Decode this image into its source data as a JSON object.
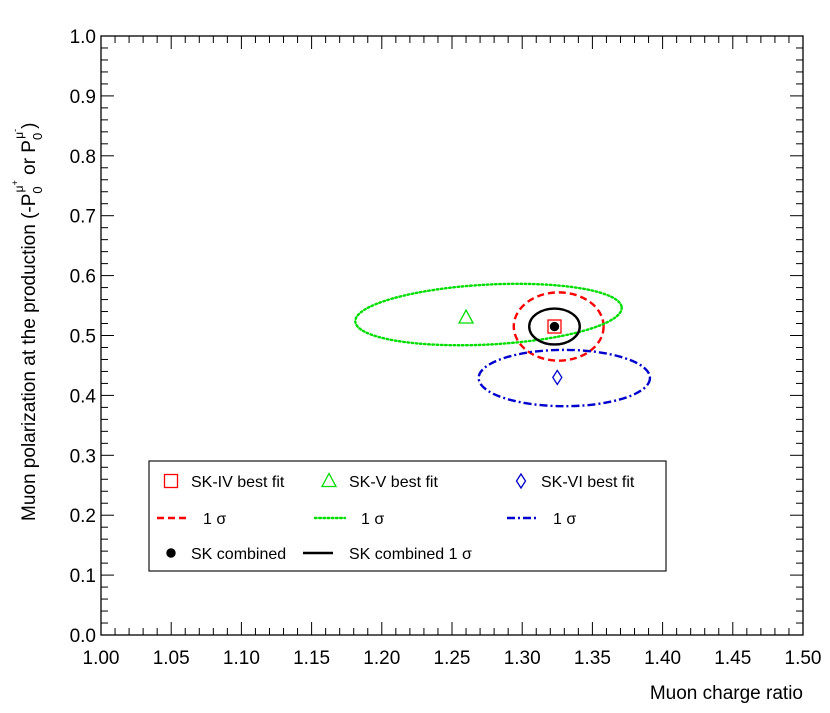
{
  "chart_data": {
    "type": "scatter",
    "xlabel": "Muon charge ratio",
    "ylabel": "Muon polarization at the production (-P",
    "ylabel_parts": {
      "sub": "0",
      "sup_plus": "μ",
      "sup_plus_mark": "+",
      "mid": " or P",
      "sub2": "0",
      "sup_minus": "μ",
      "sup_minus_mark": "-",
      "end": ")"
    },
    "xlim": [
      1.0,
      1.5
    ],
    "ylim": [
      0.0,
      1.0
    ],
    "x_ticks": [
      "1.00",
      "1.05",
      "1.10",
      "1.15",
      "1.20",
      "1.25",
      "1.30",
      "1.35",
      "1.40",
      "1.45",
      "1.50"
    ],
    "y_ticks": [
      "0.0",
      "0.1",
      "0.2",
      "0.3",
      "0.4",
      "0.5",
      "0.6",
      "0.7",
      "0.8",
      "0.9",
      "1.0"
    ],
    "grid": false,
    "points": [
      {
        "name": "SK-IV best fit",
        "x": 1.323,
        "y": 0.515,
        "marker": "open-square",
        "color": "#ff0000"
      },
      {
        "name": "SK-V best fit",
        "x": 1.26,
        "y": 0.53,
        "marker": "open-triangle",
        "color": "#00dd00"
      },
      {
        "name": "SK-VI best fit",
        "x": 1.325,
        "y": 0.43,
        "marker": "open-diamond",
        "color": "#0000cc"
      },
      {
        "name": "SK combined",
        "x": 1.323,
        "y": 0.515,
        "marker": "filled-circle",
        "color": "#000000"
      }
    ],
    "contours": [
      {
        "name": "SK-IV 1σ",
        "cx": 1.326,
        "cy": 0.515,
        "rx": 0.032,
        "ry": 0.057,
        "rotation_deg": 0,
        "style": "dashed",
        "color": "#ff0000"
      },
      {
        "name": "SK-V 1σ",
        "cx": 1.276,
        "cy": 0.535,
        "rx": 0.095,
        "ry": 0.05,
        "rotation_deg": -3,
        "style": "dotted",
        "color": "#00dd00"
      },
      {
        "name": "SK-VI 1σ",
        "cx": 1.33,
        "cy": 0.429,
        "rx": 0.061,
        "ry": 0.047,
        "rotation_deg": 0,
        "style": "dash-dot",
        "color": "#0000cc"
      },
      {
        "name": "SK combined 1σ",
        "cx": 1.323,
        "cy": 0.515,
        "rx": 0.018,
        "ry": 0.03,
        "rotation_deg": 0,
        "style": "solid",
        "color": "#000000"
      }
    ],
    "legend": {
      "placement": "bottom-left",
      "entries": [
        {
          "label": "SK-IV best fit",
          "kind": "open-square",
          "color": "#ff0000"
        },
        {
          "label": "SK-V best fit",
          "kind": "open-triangle",
          "color": "#00dd00"
        },
        {
          "label": "SK-VI best fit",
          "kind": "open-diamond",
          "color": "#0000cc"
        },
        {
          "label": "1 σ",
          "kind": "dashed",
          "color": "#ff0000"
        },
        {
          "label": "1 σ",
          "kind": "dotted",
          "color": "#00dd00"
        },
        {
          "label": "1 σ",
          "kind": "dash-dot",
          "color": "#0000cc"
        },
        {
          "label": "SK combined",
          "kind": "filled-circle",
          "color": "#000000"
        },
        {
          "label": "SK combined 1 σ",
          "kind": "solid",
          "color": "#000000"
        }
      ]
    }
  }
}
